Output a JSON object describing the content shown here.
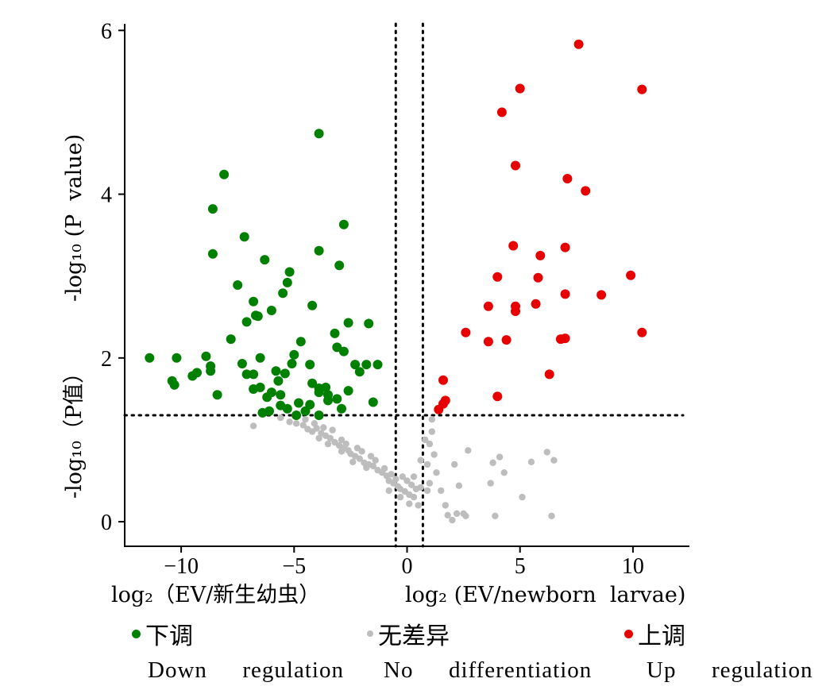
{
  "chart_data": {
    "type": "scatter",
    "xlabel_zh": "log₂（EV/新生幼虫）",
    "xlabel_en": "log₂ (EV/newborn  larvae)",
    "ylabel_zh": "-log₁₀（P值）",
    "ylabel_en": "-log₁₀ (P  value)",
    "xlim": [
      -12.5,
      12.5
    ],
    "ylim": [
      -0.3,
      6.1
    ],
    "x_ticks": [
      -10,
      -5,
      0,
      5,
      10
    ],
    "x_tick_labels": [
      "−10",
      "−5",
      "0",
      "5",
      "10"
    ],
    "y_ticks": [
      0,
      2,
      4,
      6
    ],
    "y_tick_labels": [
      "0",
      "2",
      "4",
      "6"
    ],
    "thresholds": {
      "x": [
        -0.5,
        0.7
      ],
      "y": 1.3
    },
    "series": [
      {
        "name": "下调 Down regulation",
        "color": "#008000",
        "points": [
          [
            -11.4,
            2.0
          ],
          [
            -10.2,
            2.0
          ],
          [
            -10.4,
            1.72
          ],
          [
            -10.3,
            1.67
          ],
          [
            -9.5,
            1.78
          ],
          [
            -9.3,
            1.82
          ],
          [
            -8.9,
            2.02
          ],
          [
            -8.7,
            1.84
          ],
          [
            -8.7,
            1.9
          ],
          [
            -8.4,
            1.55
          ],
          [
            -8.6,
            3.82
          ],
          [
            -8.1,
            4.24
          ],
          [
            -8.6,
            3.27
          ],
          [
            -7.2,
            3.48
          ],
          [
            -7.5,
            2.89
          ],
          [
            -7.8,
            2.23
          ],
          [
            -7.1,
            2.44
          ],
          [
            -6.8,
            2.69
          ],
          [
            -6.6,
            2.51
          ],
          [
            -6.7,
            2.52
          ],
          [
            -6.3,
            3.2
          ],
          [
            -6.0,
            2.58
          ],
          [
            -5.5,
            2.79
          ],
          [
            -5.3,
            2.92
          ],
          [
            -5.2,
            3.05
          ],
          [
            -4.2,
            2.64
          ],
          [
            -3.9,
            3.31
          ],
          [
            -3.0,
            3.13
          ],
          [
            -2.8,
            3.63
          ],
          [
            -3.9,
            4.74
          ],
          [
            -7.3,
            1.93
          ],
          [
            -7.1,
            1.8
          ],
          [
            -6.8,
            1.8
          ],
          [
            -6.8,
            1.62
          ],
          [
            -6.5,
            1.64
          ],
          [
            -6.5,
            2.0
          ],
          [
            -6.2,
            1.52
          ],
          [
            -6.0,
            1.58
          ],
          [
            -5.8,
            1.84
          ],
          [
            -5.6,
            1.55
          ],
          [
            -5.4,
            1.81
          ],
          [
            -5.1,
            1.93
          ],
          [
            -5.0,
            2.04
          ],
          [
            -4.7,
            2.2
          ],
          [
            -4.3,
            1.92
          ],
          [
            -4.2,
            1.69
          ],
          [
            -3.9,
            1.63
          ],
          [
            -3.9,
            1.58
          ],
          [
            -3.6,
            1.64
          ],
          [
            -3.5,
            1.55
          ],
          [
            -3.1,
            2.13
          ],
          [
            -3.2,
            2.3
          ],
          [
            -2.8,
            2.08
          ],
          [
            -2.6,
            1.6
          ],
          [
            -2.6,
            2.43
          ],
          [
            -2.3,
            1.92
          ],
          [
            -1.8,
            1.92
          ],
          [
            -1.7,
            2.42
          ],
          [
            -1.5,
            1.46
          ],
          [
            -1.3,
            1.92
          ],
          [
            -6.4,
            1.33
          ],
          [
            -6.1,
            1.35
          ],
          [
            -5.6,
            1.42
          ],
          [
            -5.3,
            1.38
          ],
          [
            -4.9,
            1.3
          ],
          [
            -4.5,
            1.35
          ],
          [
            -4.3,
            1.43
          ],
          [
            -3.9,
            1.3
          ],
          [
            -3.5,
            1.48
          ],
          [
            -3.1,
            1.5
          ],
          [
            -2.9,
            1.38
          ],
          [
            -2.1,
            1.83
          ],
          [
            -5.7,
            1.72
          ],
          [
            -4.8,
            1.45
          ]
        ]
      },
      {
        "name": "无差异 No differentiation",
        "color": "#bdbdbd",
        "points": [
          [
            -6.8,
            1.17
          ],
          [
            -5.6,
            1.27
          ],
          [
            -5.2,
            1.22
          ],
          [
            -4.9,
            1.2
          ],
          [
            -4.6,
            1.18
          ],
          [
            -4.4,
            1.13
          ],
          [
            -4.2,
            1.1
          ],
          [
            -4.0,
            1.14
          ],
          [
            -3.8,
            1.08
          ],
          [
            -3.6,
            1.05
          ],
          [
            -3.4,
            1.02
          ],
          [
            -3.2,
            0.97
          ],
          [
            -3.0,
            0.93
          ],
          [
            -2.8,
            0.9
          ],
          [
            -2.6,
            0.87
          ],
          [
            -2.5,
            0.83
          ],
          [
            -2.3,
            0.8
          ],
          [
            -2.1,
            0.77
          ],
          [
            -1.9,
            0.72
          ],
          [
            -1.7,
            0.7
          ],
          [
            -1.5,
            0.68
          ],
          [
            -1.3,
            0.63
          ],
          [
            -1.1,
            0.6
          ],
          [
            -0.9,
            0.56
          ],
          [
            -0.8,
            0.5
          ],
          [
            -0.6,
            0.47
          ],
          [
            -0.4,
            0.43
          ],
          [
            -0.3,
            0.4
          ],
          [
            -0.1,
            0.37
          ],
          [
            0.1,
            0.33
          ],
          [
            0.3,
            0.3
          ],
          [
            0.5,
            0.2
          ],
          [
            -4.5,
            1.25
          ],
          [
            -4.1,
            1.2
          ],
          [
            -3.7,
            1.15
          ],
          [
            -3.3,
            1.12
          ],
          [
            -2.9,
            1.0
          ],
          [
            -2.7,
            0.95
          ],
          [
            -2.2,
            0.9
          ],
          [
            -2.0,
            0.86
          ],
          [
            -1.6,
            0.8
          ],
          [
            -1.4,
            0.75
          ],
          [
            -1.0,
            0.65
          ],
          [
            -0.7,
            0.58
          ],
          [
            -0.5,
            0.52
          ],
          [
            -0.2,
            0.55
          ],
          [
            0.0,
            0.5
          ],
          [
            0.2,
            0.45
          ],
          [
            0.4,
            0.4
          ],
          [
            -2.9,
            0.86
          ],
          [
            -2.4,
            0.73
          ],
          [
            -3.5,
            0.95
          ],
          [
            -3.9,
            1.02
          ],
          [
            -1.8,
            0.66
          ],
          [
            -0.8,
            0.38
          ],
          [
            -0.3,
            0.3
          ],
          [
            0.1,
            0.22
          ],
          [
            0.6,
            0.42
          ],
          [
            0.3,
            0.55
          ],
          [
            0.9,
            0.38
          ],
          [
            0.6,
            0.75
          ],
          [
            0.9,
            0.7
          ],
          [
            1.0,
            0.95
          ],
          [
            1.1,
            1.1
          ],
          [
            1.1,
            1.25
          ],
          [
            1.2,
            0.82
          ],
          [
            1.3,
            0.6
          ],
          [
            1.5,
            0.38
          ],
          [
            1.7,
            0.2
          ],
          [
            1.8,
            0.08
          ],
          [
            2.0,
            0.02
          ],
          [
            2.2,
            0.1
          ],
          [
            2.3,
            0.44
          ],
          [
            2.5,
            0.1
          ],
          [
            2.6,
            0.07
          ],
          [
            2.1,
            0.7
          ],
          [
            2.7,
            0.87
          ],
          [
            3.7,
            0.47
          ],
          [
            3.8,
            0.72
          ],
          [
            4.1,
            0.79
          ],
          [
            4.3,
            0.6
          ],
          [
            3.9,
            0.07
          ],
          [
            5.1,
            0.3
          ],
          [
            5.5,
            0.73
          ],
          [
            6.2,
            0.85
          ],
          [
            6.5,
            0.75
          ],
          [
            6.4,
            0.07
          ],
          [
            1.0,
            0.47
          ],
          [
            0.8,
            1.0
          ]
        ]
      },
      {
        "name": "上调 Up regulation",
        "color": "#e60000",
        "points": [
          [
            1.4,
            1.37
          ],
          [
            1.6,
            1.44
          ],
          [
            1.7,
            1.48
          ],
          [
            1.6,
            1.73
          ],
          [
            2.6,
            2.31
          ],
          [
            3.6,
            2.2
          ],
          [
            3.6,
            2.63
          ],
          [
            4.0,
            1.53
          ],
          [
            4.0,
            2.99
          ],
          [
            4.2,
            5.0
          ],
          [
            4.4,
            2.22
          ],
          [
            4.7,
            3.37
          ],
          [
            4.8,
            2.63
          ],
          [
            4.8,
            2.57
          ],
          [
            4.8,
            4.35
          ],
          [
            5.0,
            5.29
          ],
          [
            5.7,
            2.66
          ],
          [
            5.8,
            2.98
          ],
          [
            5.9,
            3.25
          ],
          [
            6.3,
            1.8
          ],
          [
            6.8,
            2.23
          ],
          [
            7.0,
            2.24
          ],
          [
            7.0,
            2.78
          ],
          [
            7.0,
            3.35
          ],
          [
            7.1,
            4.19
          ],
          [
            7.6,
            5.83
          ],
          [
            7.9,
            4.04
          ],
          [
            8.6,
            2.77
          ],
          [
            9.9,
            3.01
          ],
          [
            10.4,
            5.28
          ],
          [
            10.4,
            2.31
          ]
        ]
      }
    ],
    "legend": [
      {
        "zh": "下调",
        "en": "Down  regulation",
        "color": "#008000"
      },
      {
        "zh": "无差异",
        "en": "No  differentiation",
        "color": "#bdbdbd"
      },
      {
        "zh": "上调",
        "en": "Up  regulation",
        "color": "#e60000"
      }
    ],
    "grid": false
  }
}
